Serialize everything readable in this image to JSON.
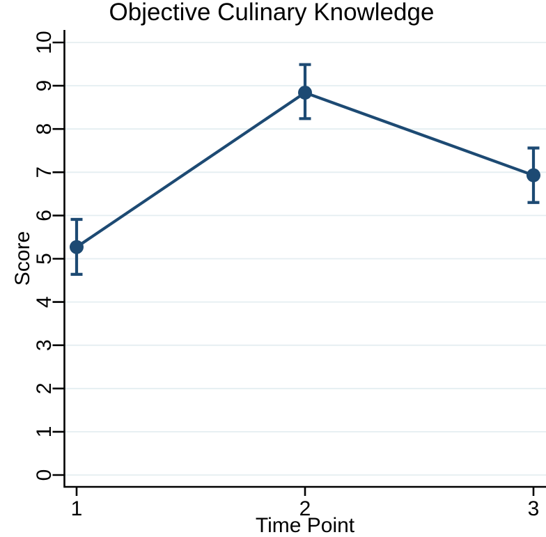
{
  "chart_data": {
    "type": "line",
    "title": "Objective Culinary Knowledge",
    "xlabel": "Time Point",
    "ylabel": "Score",
    "x": [
      1,
      2,
      3
    ],
    "xticks": [
      "1",
      "2",
      "3"
    ],
    "yticks": [
      0,
      1,
      2,
      3,
      4,
      5,
      6,
      7,
      8,
      9,
      10
    ],
    "xlim": [
      0.95,
      3.05
    ],
    "ylim": [
      0,
      10
    ],
    "grid": "horizontal-light",
    "legend": false,
    "series": [
      {
        "values": [
          5.27,
          8.84,
          6.93
        ],
        "ci_low": [
          4.64,
          8.24,
          6.3
        ],
        "ci_high": [
          5.91,
          9.49,
          7.56
        ],
        "marker": "filled-circle",
        "error_bars": "capped"
      }
    ],
    "colors": {
      "line": "#1D4A73",
      "marker": "#1D4A73",
      "grid": "#E4EEF1",
      "axis": "#000000",
      "text": "#000000",
      "background": "#FFFFFF"
    }
  }
}
